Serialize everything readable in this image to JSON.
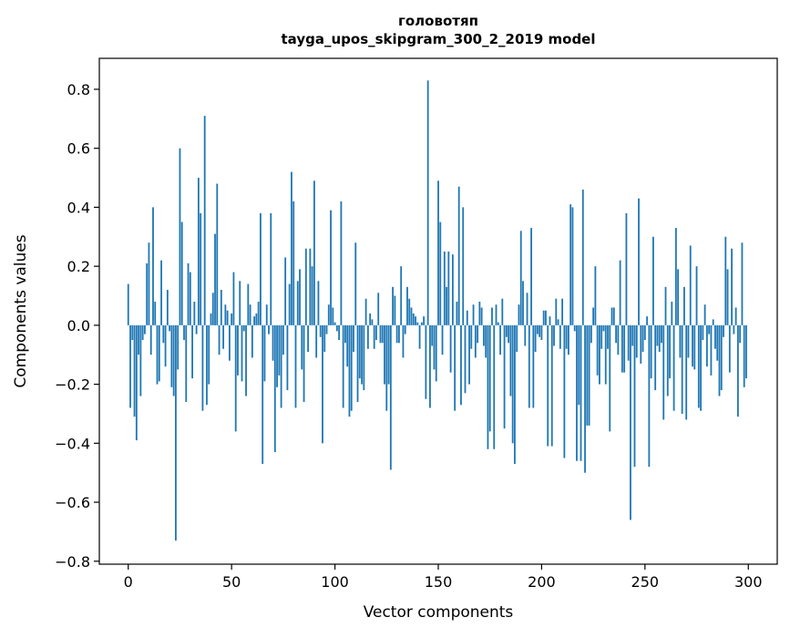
{
  "chart_data": {
    "type": "bar",
    "title": [
      "головотяп",
      "tayga_upos_skipgram_300_2_2019 model"
    ],
    "xlabel": "Vector components",
    "ylabel": "Components values",
    "xlim": [
      -14,
      314
    ],
    "ylim": [
      -0.81,
      0.905
    ],
    "xticks": [
      0,
      50,
      100,
      150,
      200,
      250,
      300
    ],
    "xtick_labels": [
      "0",
      "50",
      "100",
      "150",
      "200",
      "250",
      "300"
    ],
    "yticks": [
      -0.8,
      -0.6,
      -0.4,
      -0.2,
      0.0,
      0.2,
      0.4,
      0.6,
      0.8
    ],
    "ytick_labels": [
      "−0.8",
      "−0.6",
      "−0.4",
      "−0.2",
      "0.0",
      "0.2",
      "0.4",
      "0.6",
      "0.8"
    ],
    "grid": false,
    "bar_color": "#1f77b4",
    "values": [
      0.14,
      -0.28,
      -0.05,
      -0.31,
      -0.39,
      -0.1,
      -0.24,
      -0.05,
      -0.03,
      0.21,
      0.28,
      -0.1,
      0.4,
      0.08,
      -0.2,
      -0.19,
      0.22,
      -0.06,
      -0.14,
      0.12,
      -0.02,
      -0.21,
      -0.24,
      -0.73,
      -0.15,
      0.6,
      0.35,
      -0.05,
      -0.26,
      0.21,
      0.18,
      -0.18,
      0.08,
      -0.03,
      0.5,
      0.38,
      -0.29,
      0.71,
      -0.27,
      -0.2,
      0.04,
      0.11,
      0.31,
      0.48,
      -0.1,
      0.12,
      -0.08,
      0.07,
      0.05,
      -0.12,
      0.04,
      0.18,
      -0.36,
      -0.17,
      0.15,
      -0.19,
      -0.02,
      -0.24,
      0.14,
      0.07,
      -0.11,
      0.03,
      0.04,
      0.08,
      0.38,
      -0.47,
      -0.19,
      0.07,
      -0.03,
      0.38,
      -0.12,
      -0.43,
      -0.21,
      -0.17,
      -0.28,
      -0.1,
      0.23,
      -0.22,
      0.14,
      0.52,
      0.42,
      -0.28,
      0.15,
      0.19,
      -0.15,
      -0.26,
      0.26,
      -0.09,
      0.26,
      0.2,
      0.49,
      -0.11,
      0.15,
      -0.04,
      -0.4,
      -0.09,
      -0.03,
      0.07,
      0.39,
      0.06,
      0.01,
      -0.02,
      -0.05,
      0.42,
      -0.28,
      -0.06,
      -0.14,
      -0.31,
      -0.29,
      -0.09,
      0.28,
      -0.26,
      -0.18,
      -0.2,
      -0.22,
      0.09,
      -0.08,
      0.04,
      0.02,
      -0.08,
      -0.05,
      0.11,
      -0.06,
      -0.06,
      -0.2,
      -0.29,
      -0.2,
      -0.49,
      0.13,
      0.1,
      -0.06,
      -0.06,
      0.2,
      -0.11,
      -0.03,
      0.13,
      0.09,
      0.06,
      0.04,
      0.03,
      0.01,
      -0.08,
      0.01,
      0.03,
      -0.25,
      0.83,
      -0.28,
      -0.07,
      -0.15,
      -0.19,
      0.49,
      0.35,
      -0.1,
      0.25,
      0.13,
      0.25,
      -0.16,
      0.24,
      -0.29,
      0.08,
      0.47,
      -0.27,
      0.4,
      -0.23,
      0.05,
      -0.2,
      -0.08,
      0.07,
      -0.11,
      -0.06,
      0.08,
      0.06,
      -0.07,
      -0.11,
      -0.42,
      -0.36,
      0.06,
      -0.42,
      0.07,
      0.01,
      -0.1,
      0.09,
      -0.35,
      -0.04,
      -0.06,
      -0.24,
      -0.4,
      -0.47,
      -0.09,
      0.07,
      0.32,
      0.15,
      -0.07,
      0.11,
      -0.28,
      0.33,
      -0.28,
      -0.09,
      -0.03,
      -0.04,
      -0.05,
      0.05,
      0.05,
      -0.41,
      0.03,
      -0.41,
      -0.07,
      0.09,
      0.02,
      -0.08,
      0.09,
      -0.45,
      -0.08,
      -0.1,
      0.41,
      0.4,
      -0.02,
      -0.46,
      -0.27,
      -0.46,
      0.46,
      -0.5,
      -0.34,
      -0.34,
      -0.06,
      0.06,
      0.2,
      -0.17,
      -0.2,
      -0.08,
      -0.02,
      -0.2,
      -0.08,
      -0.36,
      0.06,
      0.06,
      -0.06,
      -0.1,
      0.22,
      -0.16,
      -0.16,
      0.38,
      -0.12,
      -0.66,
      -0.07,
      -0.48,
      -0.11,
      0.43,
      -0.13,
      -0.09,
      -0.05,
      0.03,
      -0.48,
      -0.18,
      0.3,
      -0.22,
      -0.07,
      -0.09,
      -0.06,
      -0.32,
      0.13,
      -0.24,
      -0.18,
      0.08,
      -0.29,
      0.33,
      0.19,
      -0.11,
      -0.3,
      0.13,
      -0.32,
      -0.11,
      0.27,
      -0.14,
      -0.15,
      0.2,
      -0.28,
      -0.29,
      -0.05,
      0.07,
      -0.14,
      -0.03,
      -0.17,
      0.02,
      -0.08,
      -0.12,
      -0.24,
      -0.22,
      -0.04,
      0.3,
      0.19,
      -0.16,
      0.26,
      -0.03,
      0.06,
      -0.31,
      -0.06,
      0.28,
      -0.21,
      -0.18
    ]
  }
}
